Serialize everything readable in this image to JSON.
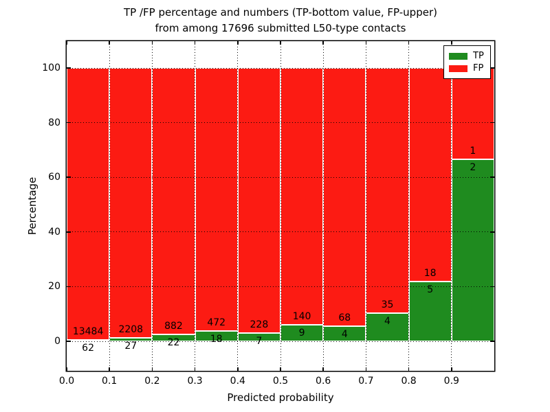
{
  "chart_data": {
    "type": "bar",
    "stacked": true,
    "title_line1": "TP /FP percentage and numbers (TP-bottom value, FP-upper)",
    "title_line2": "from among 17696 submitted L50-type contacts",
    "total_submitted": 17696,
    "xlabel": "Predicted probability",
    "ylabel": "Percentage",
    "xlim": [
      0.0,
      1.0
    ],
    "ylim": [
      -11,
      110
    ],
    "grid": "dotted",
    "x_ticks": [
      {
        "value": 0.0,
        "label": "0.0"
      },
      {
        "value": 0.1,
        "label": "0.1"
      },
      {
        "value": 0.2,
        "label": "0.2"
      },
      {
        "value": 0.3,
        "label": "0.3"
      },
      {
        "value": 0.4,
        "label": "0.4"
      },
      {
        "value": 0.5,
        "label": "0.5"
      },
      {
        "value": 0.6,
        "label": "0.6"
      },
      {
        "value": 0.7,
        "label": "0.7"
      },
      {
        "value": 0.8,
        "label": "0.8"
      },
      {
        "value": 0.9,
        "label": "0.9"
      }
    ],
    "y_ticks": [
      {
        "value": 0,
        "label": "0"
      },
      {
        "value": 20,
        "label": "20"
      },
      {
        "value": 40,
        "label": "40"
      },
      {
        "value": 60,
        "label": "60"
      },
      {
        "value": 80,
        "label": "80"
      },
      {
        "value": 100,
        "label": "100"
      }
    ],
    "series": [
      {
        "name": "TP",
        "color": "#1f8b1f",
        "position": "bottom"
      },
      {
        "name": "FP",
        "color": "#fc1b13",
        "position": "top"
      }
    ],
    "legend": {
      "position": "upper right",
      "entries": [
        "TP",
        "FP"
      ]
    },
    "bins": [
      {
        "range": "0.0-0.1",
        "tp": 62,
        "fp": 13484,
        "tp_pct": 0.46
      },
      {
        "range": "0.1-0.2",
        "tp": 27,
        "fp": 2208,
        "tp_pct": 1.21
      },
      {
        "range": "0.2-0.3",
        "tp": 22,
        "fp": 882,
        "tp_pct": 2.43
      },
      {
        "range": "0.3-0.4",
        "tp": 18,
        "fp": 472,
        "tp_pct": 3.67
      },
      {
        "range": "0.4-0.5",
        "tp": 7,
        "fp": 228,
        "tp_pct": 2.98
      },
      {
        "range": "0.5-0.6",
        "tp": 9,
        "fp": 140,
        "tp_pct": 6.04
      },
      {
        "range": "0.6-0.7",
        "tp": 4,
        "fp": 68,
        "tp_pct": 5.56
      },
      {
        "range": "0.7-0.8",
        "tp": 4,
        "fp": 35,
        "tp_pct": 10.26
      },
      {
        "range": "0.8-0.9",
        "tp": 5,
        "fp": 18,
        "tp_pct": 21.74
      },
      {
        "range": "0.9-1.0",
        "tp": 2,
        "fp": 1,
        "tp_pct": 66.67
      }
    ]
  }
}
